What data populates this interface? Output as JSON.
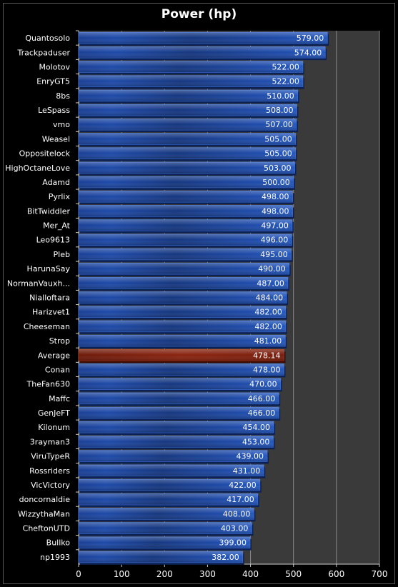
{
  "chart_data": {
    "type": "bar",
    "orientation": "horizontal",
    "title": "Power (hp)",
    "xlabel": "",
    "ylabel": "",
    "xlim": [
      0,
      700
    ],
    "x_ticks": [
      "0",
      "100",
      "200",
      "300",
      "400",
      "500",
      "600",
      "700"
    ],
    "grid": "vertical",
    "legend": "none",
    "categories": [
      "Quantosolo",
      "Trackpaduser",
      "Molotov",
      "EnryGT5",
      "8bs",
      "LeSpass",
      "vmo",
      "Weasel",
      "Oppositelock",
      "HighOctaneLove",
      "Adamd",
      "Pyrlix",
      "BitTwiddler",
      "Mer_At",
      "Leo9613",
      "Pleb",
      "HarunaSay",
      "NormanVauxh...",
      "Nialloftara",
      "Harizvet1",
      "Cheeseman",
      "Strop",
      "Average",
      "Conan",
      "TheFan630",
      "Maffc",
      "GenJeFT",
      "Kilonum",
      "3rayman3",
      "ViruTypeR",
      "Rossriders",
      "VicVictory",
      "doncornaldie",
      "WizzythaMan",
      "CheftonUTD",
      "Bullko",
      "np1993"
    ],
    "values": [
      579,
      574,
      522,
      522,
      510,
      508,
      507,
      505,
      505,
      503,
      500,
      498,
      498,
      497,
      496,
      495,
      490,
      487,
      484,
      482,
      482,
      481,
      478.14,
      478,
      470,
      466,
      466,
      454,
      453,
      439,
      431,
      422,
      417,
      408,
      403,
      399,
      382
    ],
    "value_labels": [
      "579.00",
      "574.00",
      "522.00",
      "522.00",
      "510.00",
      "508.00",
      "507.00",
      "505.00",
      "505.00",
      "503.00",
      "500.00",
      "498.00",
      "498.00",
      "497.00",
      "496.00",
      "495.00",
      "490.00",
      "487.00",
      "484.00",
      "482.00",
      "482.00",
      "481.00",
      "478.14",
      "478.00",
      "470.00",
      "466.00",
      "466.00",
      "454.00",
      "453.00",
      "439.00",
      "431.00",
      "422.00",
      "417.00",
      "408.00",
      "403.00",
      "399.00",
      "382.00"
    ],
    "highlight_category": "Average",
    "colors": {
      "bar": "#1f4fae",
      "bar_highlight": "#7a1c0c",
      "plot_bg": "#3a3a3a",
      "grid": "#8c8c8c",
      "text": "#ffffff"
    }
  }
}
